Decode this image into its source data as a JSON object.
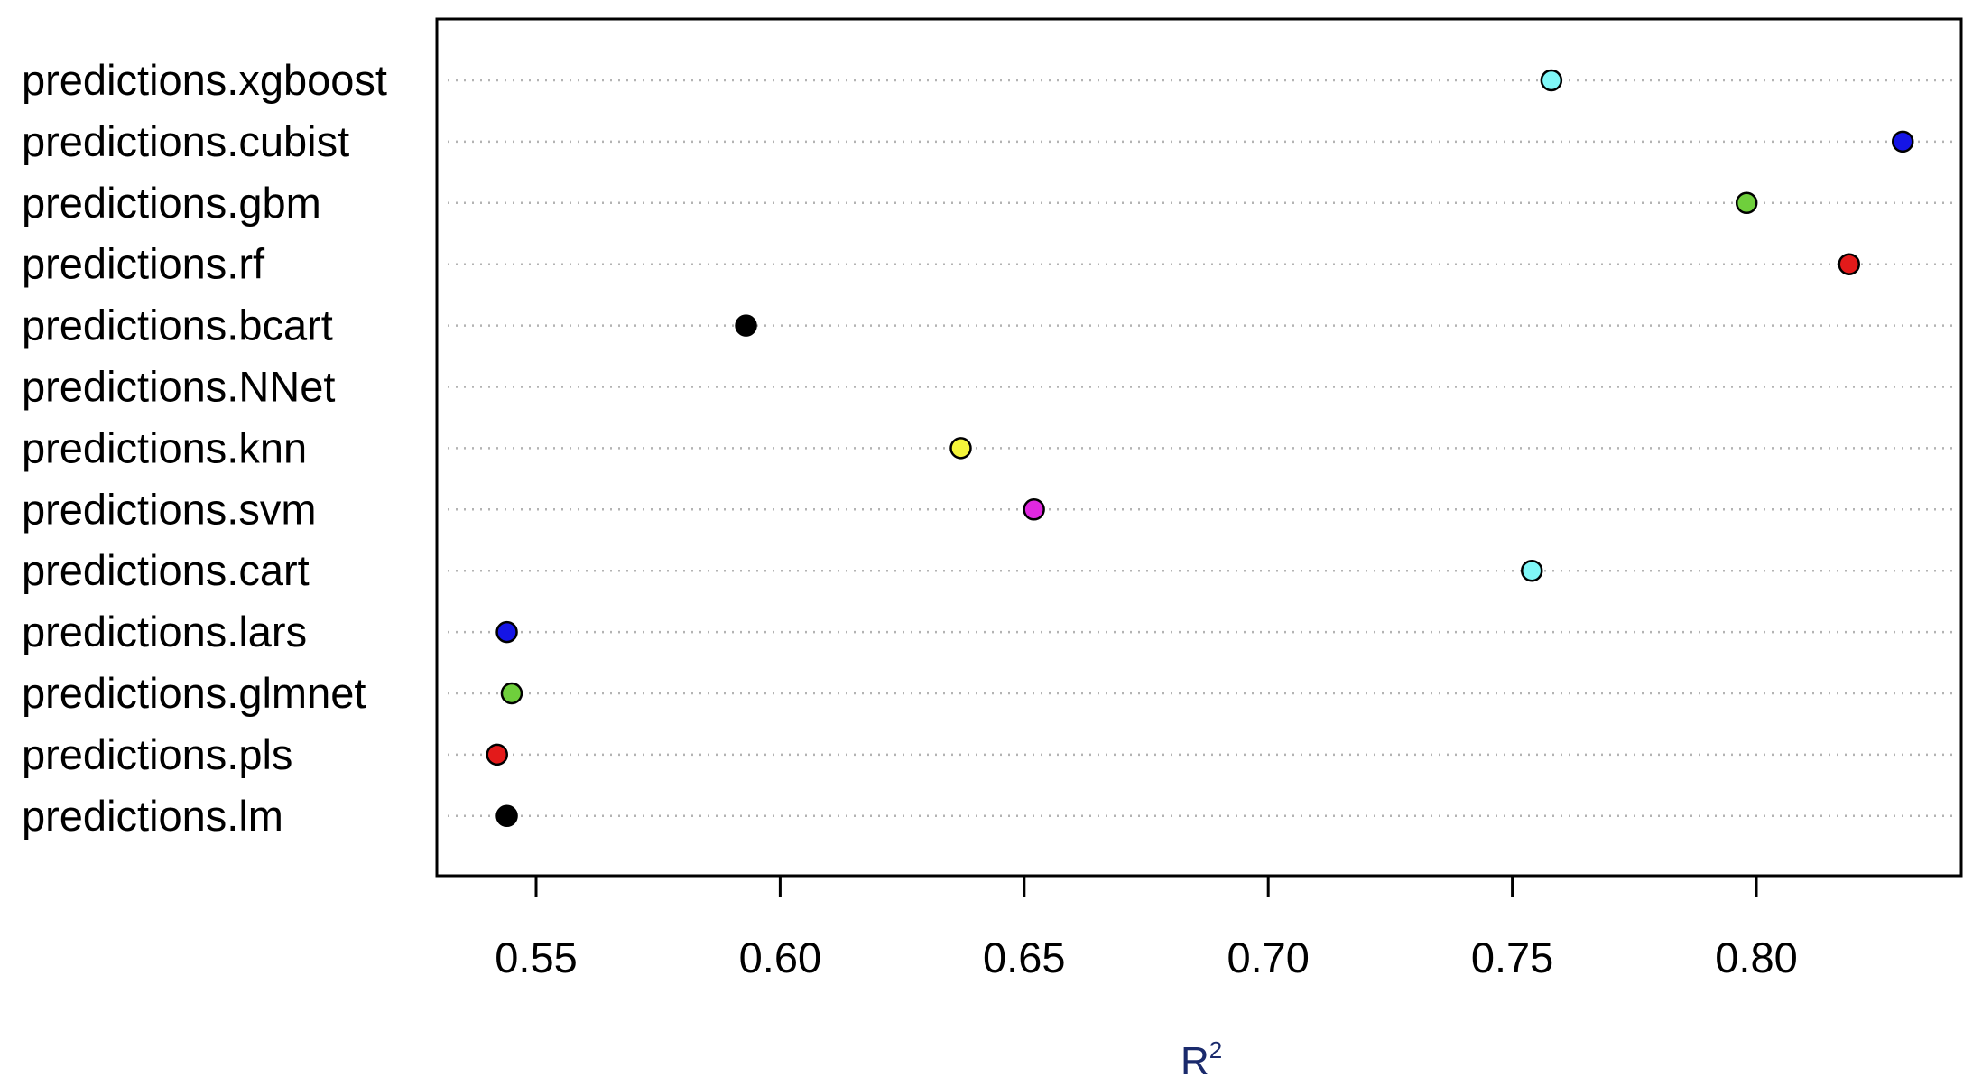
{
  "chart_data": {
    "type": "scatter",
    "subtype": "dotplot",
    "title": "",
    "xlabel": "R",
    "xlabel_superscript": "2",
    "ylabel": "",
    "xlim": [
      0.53,
      0.84
    ],
    "xticks": [
      0.55,
      0.6,
      0.65,
      0.7,
      0.75,
      0.8
    ],
    "xtick_labels": [
      "0.55",
      "0.60",
      "0.65",
      "0.70",
      "0.75",
      "0.80"
    ],
    "grid": "horizontal dotted",
    "legend": "none",
    "categories": [
      "predictions.xgboost",
      "predictions.cubist",
      "predictions.gbm",
      "predictions.rf",
      "predictions.bcart",
      "predictions.NNet",
      "predictions.knn",
      "predictions.svm",
      "predictions.cart",
      "predictions.lars",
      "predictions.glmnet",
      "predictions.pls",
      "predictions.lm"
    ],
    "values": [
      0.758,
      0.83,
      0.798,
      0.819,
      0.593,
      null,
      0.637,
      0.652,
      0.754,
      0.544,
      0.545,
      0.542,
      0.544
    ],
    "colors": [
      "#7ff7f7",
      "#1515e6",
      "#6fcf3c",
      "#e31a1a",
      "#000000",
      null,
      "#f5f53a",
      "#e028e0",
      "#7ff7f7",
      "#1515e6",
      "#6fcf3c",
      "#e31a1a",
      "#000000"
    ]
  }
}
